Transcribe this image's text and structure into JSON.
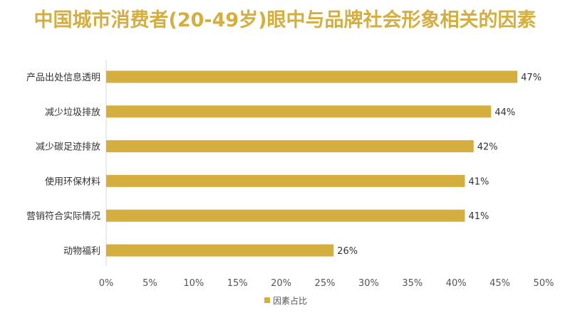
{
  "chart_data": {
    "type": "bar",
    "orientation": "horizontal",
    "title": "中国城市消费者(20-49岁)眼中与品牌社会形象相关的因素",
    "categories": [
      "产品出处信息透明",
      "减少垃圾排放",
      "减少碳足迹排放",
      "使用环保材料",
      "营销符合实际情况",
      "动物福利"
    ],
    "series": [
      {
        "name": "因素占比",
        "values": [
          47,
          44,
          42,
          41,
          41,
          26
        ],
        "value_labels": [
          "47%",
          "44%",
          "42%",
          "41%",
          "41%",
          "26%"
        ],
        "color": "#D4AE3F"
      }
    ],
    "x_ticks": [
      0,
      5,
      10,
      15,
      20,
      25,
      30,
      35,
      40,
      45,
      50
    ],
    "x_tick_labels": [
      "0%",
      "5%",
      "10%",
      "15%",
      "20%",
      "25%",
      "30%",
      "35%",
      "40%",
      "45%",
      "50%"
    ],
    "xlim": [
      0,
      50
    ],
    "grid": false,
    "legend_position": "bottom-center",
    "colors": {
      "title": "#D4AE3F",
      "bar": "#D4AE3F",
      "axis": "#D9D9D9"
    }
  }
}
